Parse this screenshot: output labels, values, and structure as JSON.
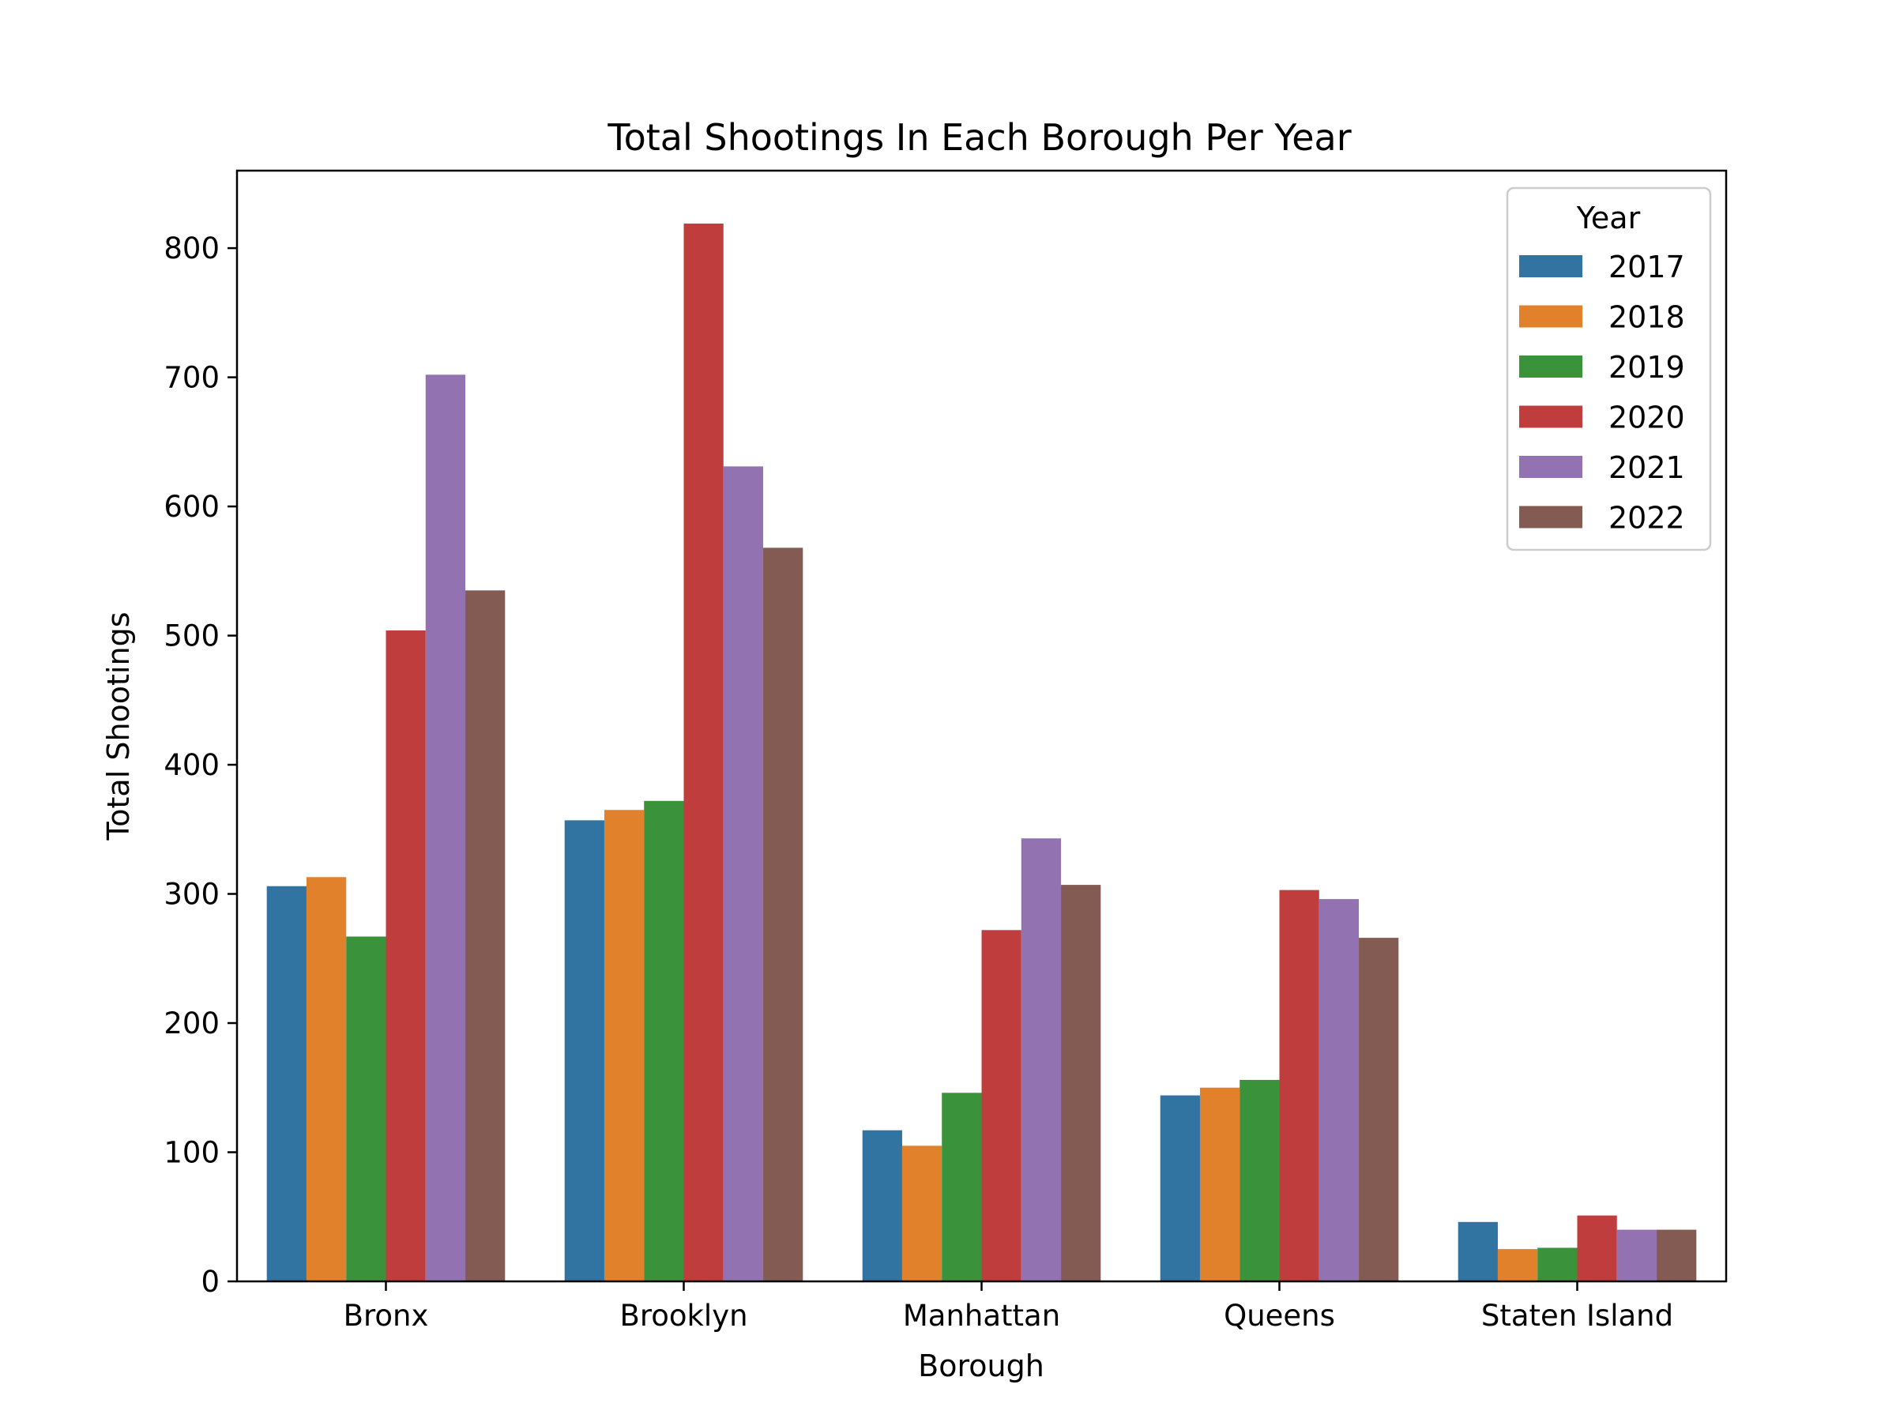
{
  "chart_data": {
    "type": "bar",
    "title": "Total Shootings In Each Borough Per Year",
    "xlabel": "Borough",
    "ylabel": "Total Shootings",
    "ylim": [
      0,
      860
    ],
    "yticks": [
      0,
      100,
      200,
      300,
      400,
      500,
      600,
      700,
      800
    ],
    "categories": [
      "Bronx",
      "Brooklyn",
      "Manhattan",
      "Queens",
      "Staten Island"
    ],
    "series": [
      {
        "name": "2017",
        "color": "#3274a1",
        "values": [
          306,
          357,
          117,
          144,
          46
        ]
      },
      {
        "name": "2018",
        "color": "#e1812c",
        "values": [
          313,
          365,
          105,
          150,
          25
        ]
      },
      {
        "name": "2019",
        "color": "#3a923a",
        "values": [
          267,
          372,
          146,
          156,
          26
        ]
      },
      {
        "name": "2020",
        "color": "#c03d3e",
        "values": [
          504,
          819,
          272,
          303,
          51
        ]
      },
      {
        "name": "2021",
        "color": "#9372b2",
        "values": [
          702,
          631,
          343,
          296,
          40
        ]
      },
      {
        "name": "2022",
        "color": "#845b53",
        "values": [
          535,
          568,
          307,
          266,
          40
        ]
      }
    ],
    "legend": {
      "title": "Year",
      "position": "top-right"
    },
    "grid": false
  }
}
